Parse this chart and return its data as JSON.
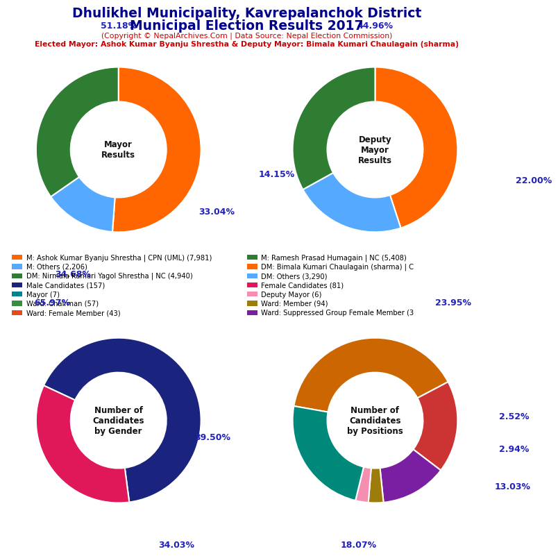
{
  "title_line1": "Dhulikhel Municipality, Kavrepalanchok District",
  "title_line2": "Municipal Election Results 2017",
  "subtitle1": "(Copyright © NepalArchives.Com | Data Source: Nepal Election Commission)",
  "subtitle2": "Elected Mayor: Ashok Kumar Byanju Shrestha & Deputy Mayor: Bimala Kumari Chaulagain (sharma)",
  "mayor_values": [
    51.18,
    14.15,
    34.68
  ],
  "mayor_colors": [
    "#FF6600",
    "#55AAFF",
    "#2E7D32"
  ],
  "mayor_label": "Mayor\nResults",
  "deputy_values": [
    44.96,
    22.0,
    33.04
  ],
  "deputy_colors": [
    "#FF6600",
    "#55AAFF",
    "#2E7D32"
  ],
  "deputy_label": "Deputy\nMayor\nResults",
  "gender_values": [
    65.97,
    34.03
  ],
  "gender_colors": [
    "#1A237E",
    "#E0185A"
  ],
  "gender_label": "Number of\nCandidates\nby Gender",
  "positions_values": [
    39.5,
    18.07,
    13.03,
    2.94,
    2.52,
    23.95
  ],
  "positions_colors": [
    "#CC6600",
    "#CC3333",
    "#7B1FA2",
    "#9E7C0C",
    "#F48FB1",
    "#00897B"
  ],
  "positions_label": "Number of\nCandidates\nby Positions",
  "legend_left": [
    {
      "label": "M: Ashok Kumar Byanju Shrestha | CPN (UML) (7,981)",
      "color": "#FF6600"
    },
    {
      "label": "M: Others (2,206)",
      "color": "#55AAFF"
    },
    {
      "label": "DM: Nirmala Kumari Yagol Shrestha | NC (4,940)",
      "color": "#2E7D32"
    },
    {
      "label": "Male Candidates (157)",
      "color": "#1A237E"
    },
    {
      "label": "Mayor (7)",
      "color": "#00838F"
    },
    {
      "label": "Ward: Chairman (57)",
      "color": "#388E3C"
    },
    {
      "label": "Ward: Female Member (43)",
      "color": "#E64A19"
    }
  ],
  "legend_right": [
    {
      "label": "M: Ramesh Prasad Humagain | NC (5,408)",
      "color": "#2E7D32"
    },
    {
      "label": "DM: Bimala Kumari Chaulagain (sharma) | C",
      "color": "#FF6600"
    },
    {
      "label": "DM: Others (3,290)",
      "color": "#55AAFF"
    },
    {
      "label": "Female Candidates (81)",
      "color": "#E0185A"
    },
    {
      "label": "Deputy Mayor (6)",
      "color": "#F48FB1"
    },
    {
      "label": "Ward: Member (94)",
      "color": "#9E7C0C"
    },
    {
      "label": "Ward: Suppressed Group Female Member (3",
      "color": "#7B1FA2"
    }
  ],
  "background_color": "#FFFFFF",
  "title_color": "#00008B",
  "subtitle_color": "#CC0000",
  "pct_color": "#2222BB"
}
